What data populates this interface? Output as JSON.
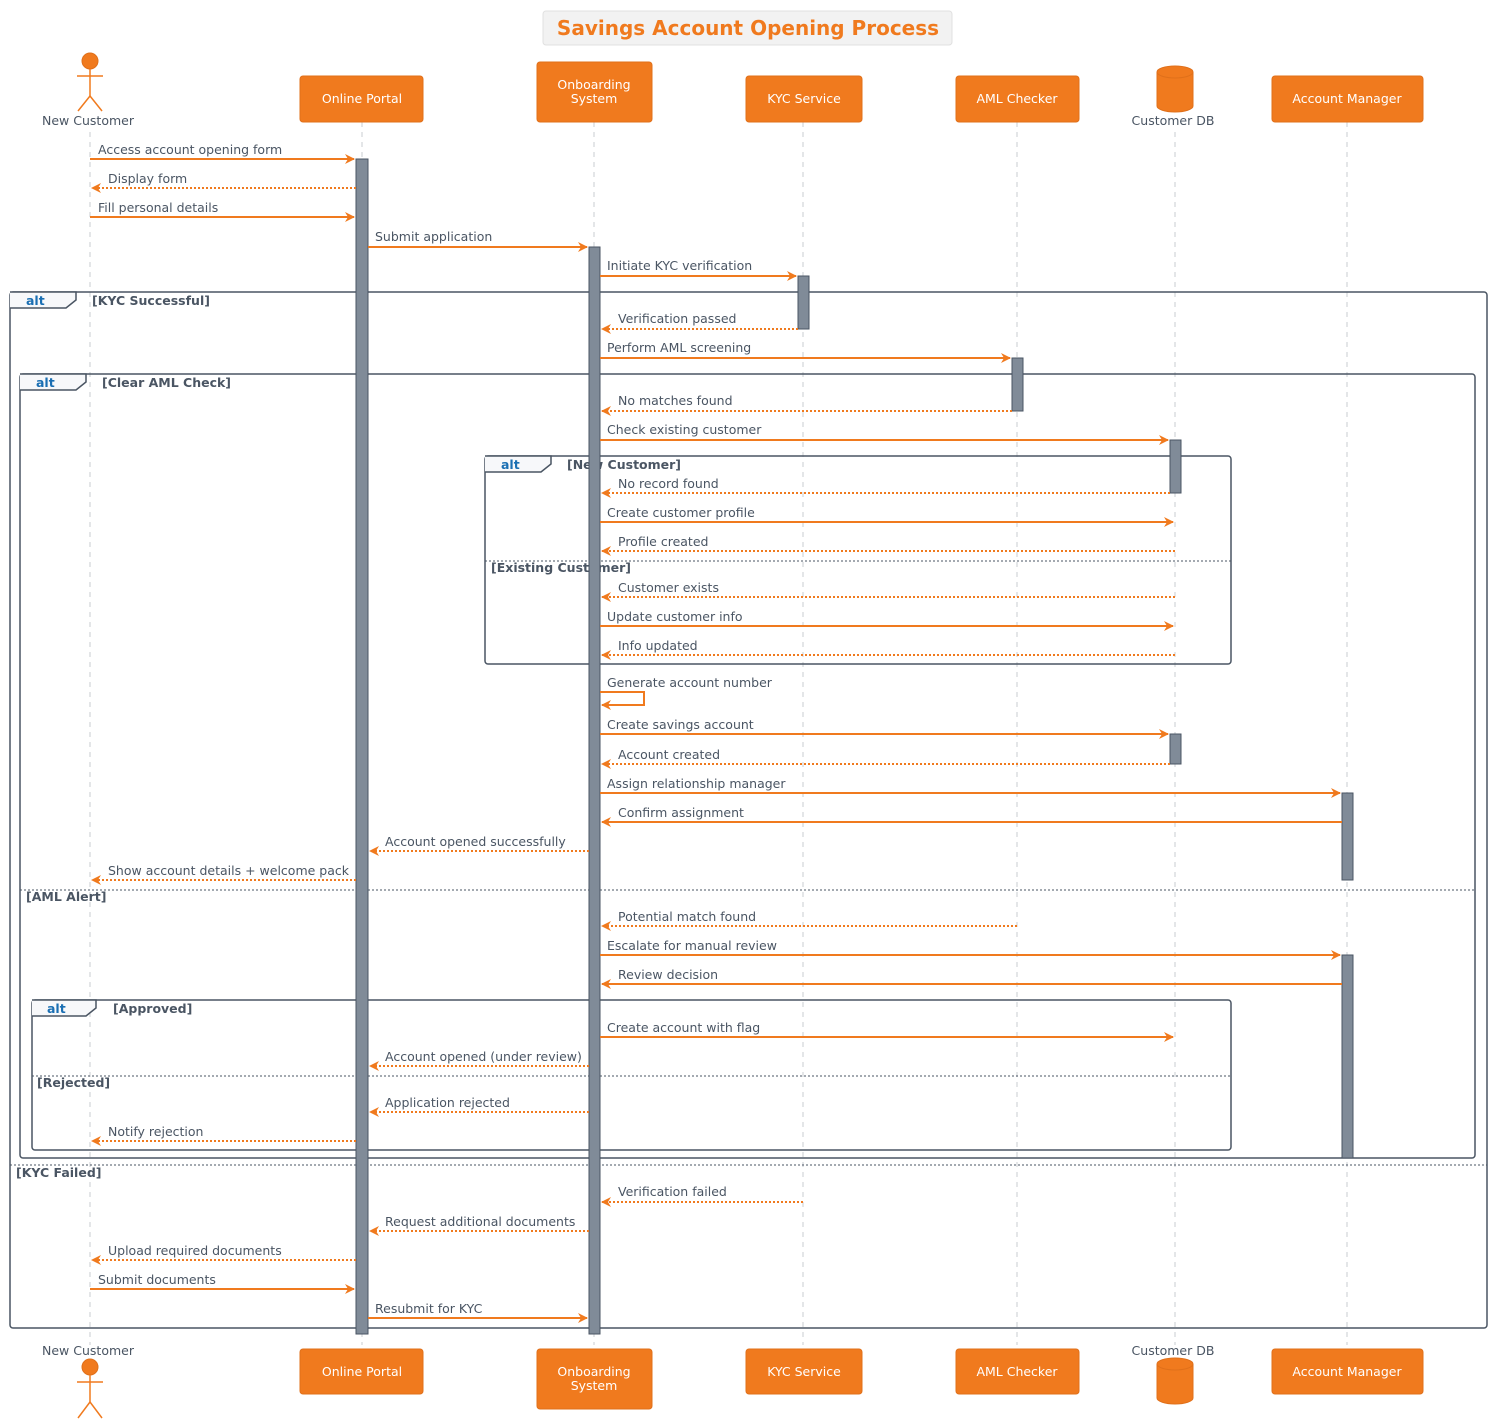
{
  "title": "Savings Account Opening Process",
  "colors": {
    "accent": "#f07a1e",
    "title_bg": "#f2f2f2",
    "activation": "#808b98",
    "frame": "#4a5563",
    "text": "#4a5563",
    "keyword": "#1a6fb3"
  },
  "participants": [
    {
      "id": "cust",
      "name": "New Customer",
      "kind": "actor"
    },
    {
      "id": "portal",
      "name": "Online Portal",
      "kind": "box"
    },
    {
      "id": "onb",
      "name": "Onboarding System",
      "lines": [
        "Onboarding",
        "System"
      ],
      "kind": "box"
    },
    {
      "id": "kyc",
      "name": "KYC Service",
      "kind": "box"
    },
    {
      "id": "aml",
      "name": "AML Checker",
      "kind": "box"
    },
    {
      "id": "db",
      "name": "Customer DB",
      "kind": "database"
    },
    {
      "id": "mgr",
      "name": "Account Manager",
      "kind": "box"
    }
  ],
  "messages": [
    {
      "from": "cust",
      "to": "portal",
      "text": "Access account opening form",
      "style": "solid"
    },
    {
      "from": "portal",
      "to": "cust",
      "text": "Display form",
      "style": "dashed"
    },
    {
      "from": "cust",
      "to": "portal",
      "text": "Fill personal details",
      "style": "solid"
    },
    {
      "from": "portal",
      "to": "onb",
      "text": "Submit application",
      "style": "solid"
    },
    {
      "from": "onb",
      "to": "kyc",
      "text": "Initiate KYC verification",
      "style": "solid"
    },
    {
      "from": "kyc",
      "to": "onb",
      "text": "Verification passed",
      "style": "dashed"
    },
    {
      "from": "onb",
      "to": "aml",
      "text": "Perform AML screening",
      "style": "solid"
    },
    {
      "from": "aml",
      "to": "onb",
      "text": "No matches found",
      "style": "dashed"
    },
    {
      "from": "onb",
      "to": "db",
      "text": "Check existing customer",
      "style": "solid"
    },
    {
      "from": "db",
      "to": "onb",
      "text": "No record found",
      "style": "dashed"
    },
    {
      "from": "onb",
      "to": "db",
      "text": "Create customer profile",
      "style": "solid"
    },
    {
      "from": "db",
      "to": "onb",
      "text": "Profile created",
      "style": "dashed"
    },
    {
      "from": "db",
      "to": "onb",
      "text": "Customer exists",
      "style": "dashed"
    },
    {
      "from": "onb",
      "to": "db",
      "text": "Update customer info",
      "style": "solid"
    },
    {
      "from": "db",
      "to": "onb",
      "text": "Info updated",
      "style": "dashed"
    },
    {
      "from": "onb",
      "to": "onb",
      "text": "Generate account number",
      "style": "solid"
    },
    {
      "from": "onb",
      "to": "db",
      "text": "Create savings account",
      "style": "solid"
    },
    {
      "from": "db",
      "to": "onb",
      "text": "Account created",
      "style": "dashed"
    },
    {
      "from": "onb",
      "to": "mgr",
      "text": "Assign relationship manager",
      "style": "solid"
    },
    {
      "from": "mgr",
      "to": "onb",
      "text": "Confirm assignment",
      "style": "solid"
    },
    {
      "from": "onb",
      "to": "portal",
      "text": "Account opened successfully",
      "style": "dashed"
    },
    {
      "from": "portal",
      "to": "cust",
      "text": "Show account details + welcome pack",
      "style": "dashed"
    },
    {
      "from": "aml",
      "to": "onb",
      "text": "Potential match found",
      "style": "dashed"
    },
    {
      "from": "onb",
      "to": "mgr",
      "text": "Escalate for manual review",
      "style": "solid"
    },
    {
      "from": "mgr",
      "to": "onb",
      "text": "Review decision",
      "style": "solid"
    },
    {
      "from": "onb",
      "to": "db",
      "text": "Create account with flag",
      "style": "solid"
    },
    {
      "from": "onb",
      "to": "portal",
      "text": "Account opened (under review)",
      "style": "dashed"
    },
    {
      "from": "onb",
      "to": "portal",
      "text": "Application rejected",
      "style": "dashed"
    },
    {
      "from": "portal",
      "to": "cust",
      "text": "Notify rejection",
      "style": "dashed"
    },
    {
      "from": "kyc",
      "to": "onb",
      "text": "Verification failed",
      "style": "dashed"
    },
    {
      "from": "onb",
      "to": "portal",
      "text": "Request additional documents",
      "style": "dashed"
    },
    {
      "from": "portal",
      "to": "cust",
      "text": "Upload required documents",
      "style": "dashed"
    },
    {
      "from": "cust",
      "to": "portal",
      "text": "Submit documents",
      "style": "solid"
    },
    {
      "from": "portal",
      "to": "onb",
      "text": "Resubmit for KYC",
      "style": "solid"
    }
  ],
  "fragments": [
    {
      "keyword": "alt",
      "guard": "[KYC Successful]",
      "else_guards": [
        "[KYC Failed]"
      ]
    },
    {
      "keyword": "alt",
      "guard": "[Clear AML Check]",
      "else_guards": [
        "[AML Alert]"
      ]
    },
    {
      "keyword": "alt",
      "guard": "[New Customer]",
      "else_guards": [
        "[Existing Customer]"
      ]
    },
    {
      "keyword": "alt",
      "guard": "[Approved]",
      "else_guards": [
        "[Rejected]"
      ]
    }
  ]
}
